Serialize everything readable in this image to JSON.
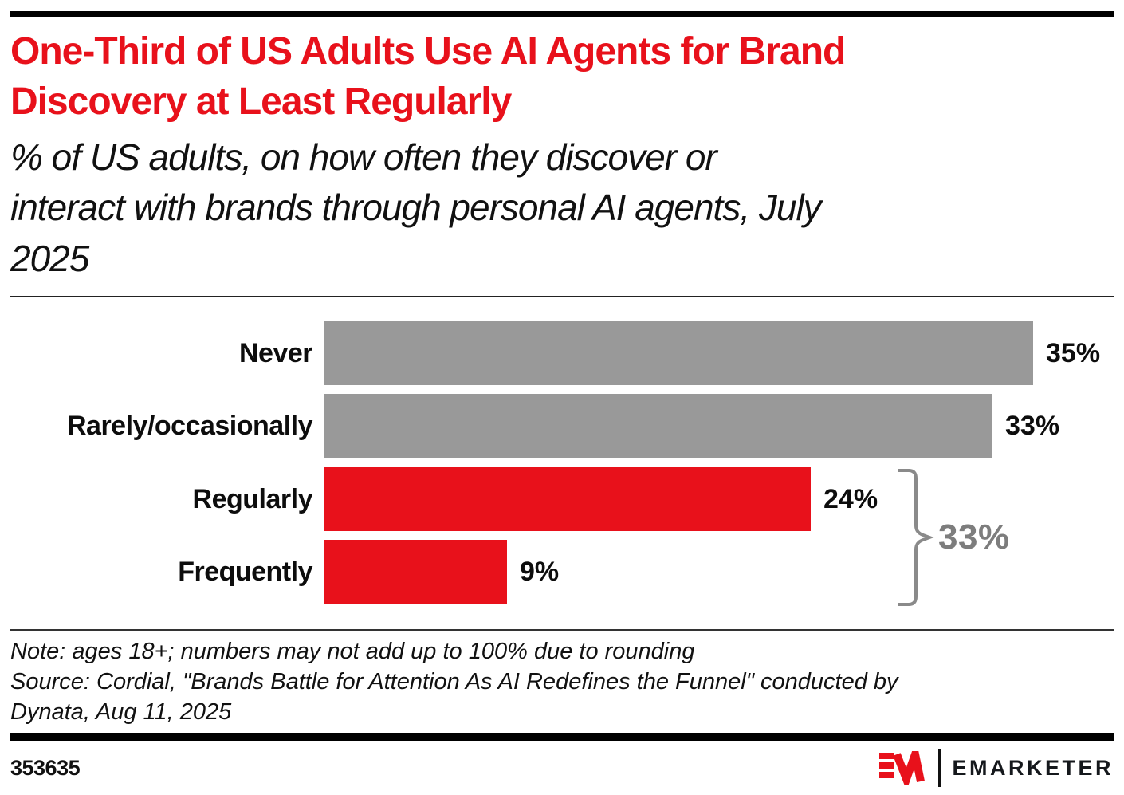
{
  "header": {
    "title": "One-Third of US Adults Use AI Agents for Brand\nDiscovery at Least Regularly",
    "subtitle": "% of US adults, on how often they discover or\ninteract with brands through personal AI agents, July\n2025"
  },
  "chart_data": {
    "type": "bar",
    "orientation": "horizontal",
    "title": "One-Third of US Adults Use AI Agents for Brand Discovery at Least Regularly",
    "subtitle": "% of US adults, on how often they discover or interact with brands through personal AI agents, July 2025",
    "categories": [
      "Never",
      "Rarely/occasionally",
      "Regularly",
      "Frequently"
    ],
    "values": [
      35,
      33,
      24,
      9
    ],
    "value_labels": [
      "35%",
      "33%",
      "24%",
      "9%"
    ],
    "bar_colors": [
      "#999999",
      "#999999",
      "#e8111b",
      "#e8111b"
    ],
    "xlabel": "",
    "ylabel": "",
    "xlim": [
      0,
      39
    ],
    "grid": false,
    "legend": false,
    "annotation": {
      "label": "33%",
      "grouped_categories": [
        "Regularly",
        "Frequently"
      ],
      "shape": "right-brace",
      "color": "#7d7d7d"
    }
  },
  "note": "Note: ages 18+; numbers may not add up to 100% due to rounding",
  "source": "Source: Cordial, \"Brands Battle for Attention As AI Redefines the Funnel\" conducted by\nDynata, Aug 11, 2025",
  "footer": {
    "chart_id": "353635",
    "brand_name": "EMARKETER",
    "logo_mark": "EM-mark",
    "brand_color": "#e8111b"
  }
}
